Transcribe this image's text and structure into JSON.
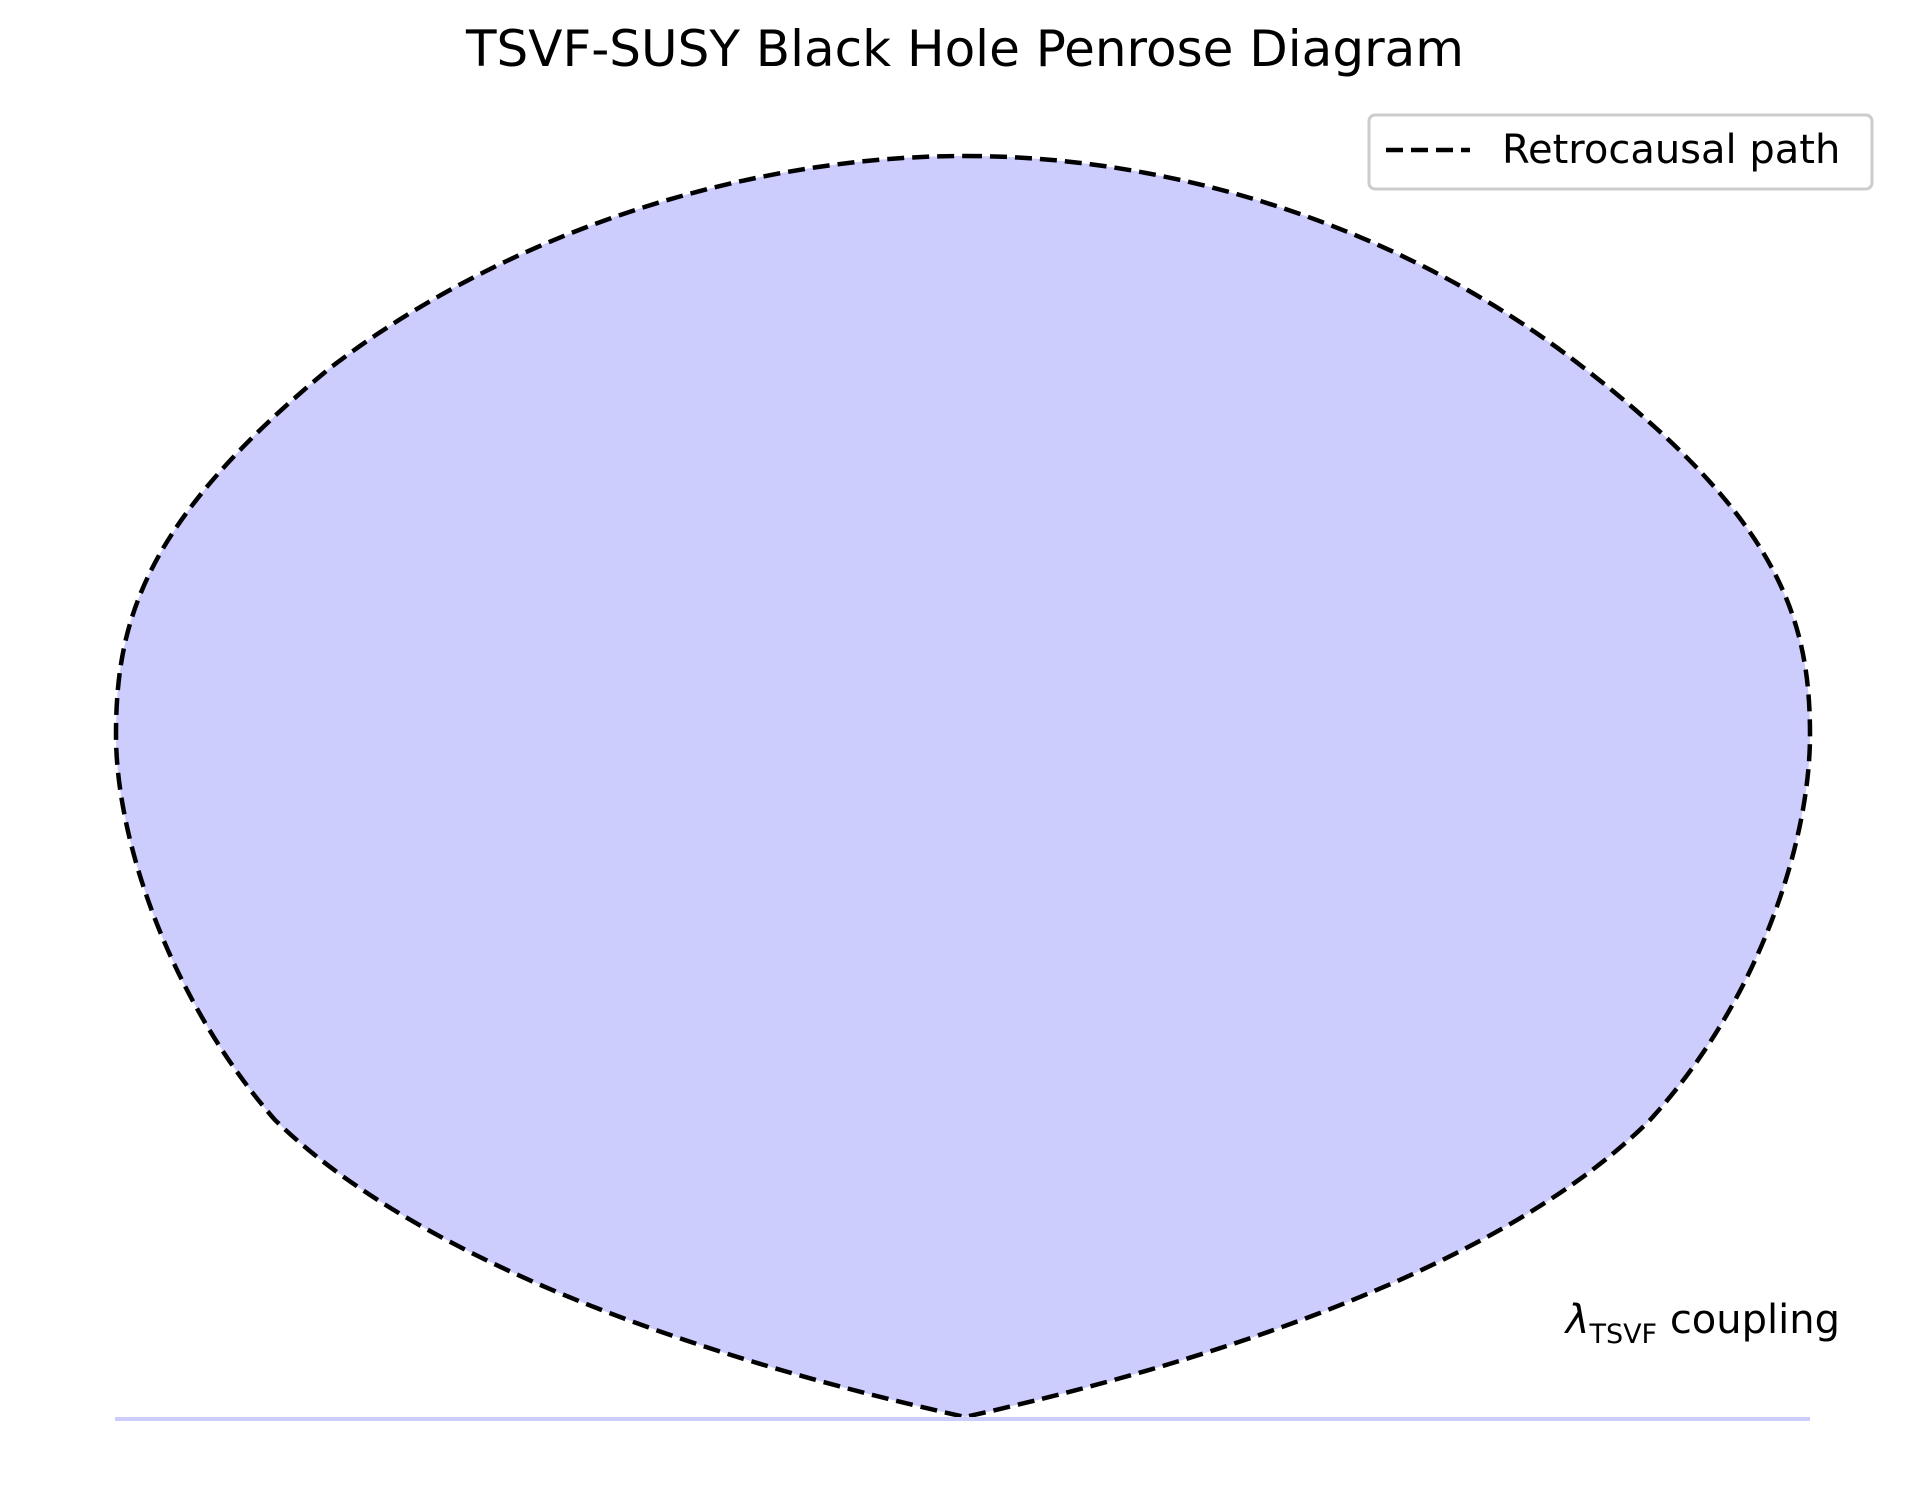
{
  "figure": {
    "title": "TSVF-SUSY Black Hole Penrose Diagram",
    "fill_color": "#ccccfd",
    "path_color": "#000000",
    "baseline_color": "#ccccfd"
  },
  "legend": {
    "entries": [
      {
        "label": "Retrocausal path",
        "style": "dashed",
        "color": "#000000"
      }
    ],
    "placement": "upper right"
  },
  "annotation": {
    "symbol": "λ",
    "subscript": "TSVF",
    "text": "coupling"
  }
}
